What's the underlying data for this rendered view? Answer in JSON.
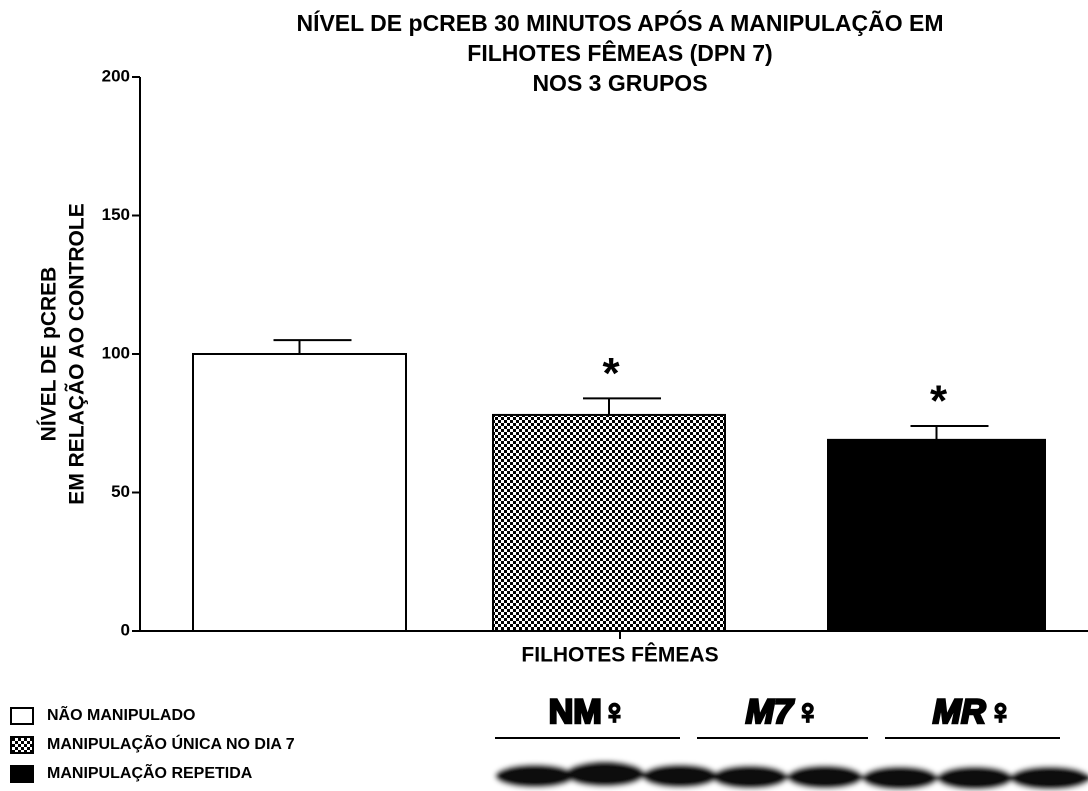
{
  "chart_data": {
    "type": "bar",
    "title": [
      "NÍVEL DE pCREB 30 MINUTOS APÓS A MANIPULAÇÃO EM",
      "FILHOTES FÊMEAS (DPN 7)",
      "NOS 3 GRUPOS"
    ],
    "y_label": [
      "NÍVEL DE pCREB",
      "EM RELAÇÃO AO CONTROLE"
    ],
    "x_label": "FILHOTES FÊMEAS",
    "categories": [
      null,
      null,
      null
    ],
    "values": [
      100,
      78,
      69
    ],
    "errors": [
      5,
      6,
      5
    ],
    "annotations": [
      null,
      "*",
      "*"
    ],
    "fills": [
      "white",
      "checker",
      "black"
    ],
    "legend": [
      "NÃO MANIPULADO",
      "MANIPULAÇÃO ÚNICA NO DIA 7",
      "MANIPULAÇÃO REPETIDA"
    ],
    "ylim": [
      0,
      200
    ],
    "yticks": [
      0,
      50,
      100,
      150,
      200
    ]
  },
  "blot_labels": [
    "NM♀",
    "M7♀",
    "MR♀"
  ]
}
